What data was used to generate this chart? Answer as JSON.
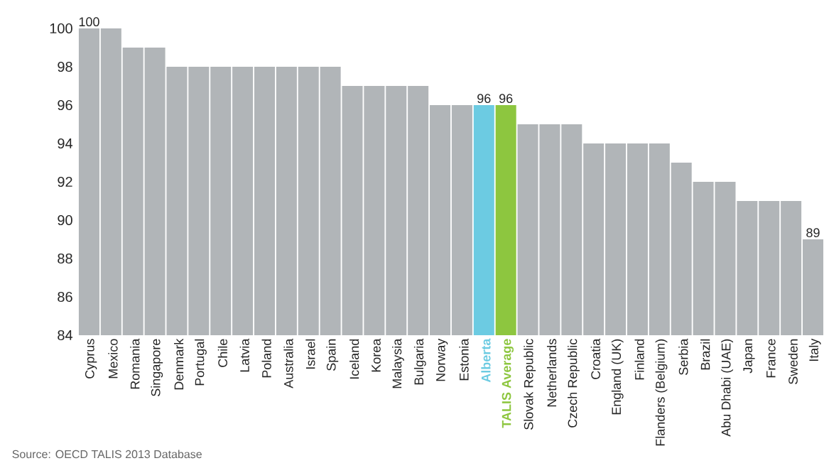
{
  "chart_data": {
    "type": "bar",
    "categories": [
      "Cyprus",
      "Mexico",
      "Romania",
      "Singapore",
      "Denmark",
      "Portugal",
      "Chile",
      "Latvia",
      "Poland",
      "Australia",
      "Israel",
      "Spain",
      "Iceland",
      "Korea",
      "Malaysia",
      "Bulgaria",
      "Norway",
      "Estonia",
      "Alberta",
      "TALIS Average",
      "Slovak Republic",
      "Netherlands",
      "Czech Republic",
      "Croatia",
      "England (UK)",
      "Finland",
      "Flanders (Belgium)",
      "Serbia",
      "Brazil",
      "Abu Dhabi (UAE)",
      "Japan",
      "France",
      "Sweden",
      "Italy"
    ],
    "values": [
      100,
      100,
      99,
      99,
      98,
      98,
      98,
      98,
      98,
      98,
      98,
      98,
      97,
      97,
      97,
      97,
      96,
      96,
      96,
      96,
      95,
      95,
      95,
      94,
      94,
      94,
      94,
      93,
      92,
      92,
      91,
      91,
      91,
      89
    ],
    "value_labels": [
      "100",
      null,
      null,
      null,
      null,
      null,
      null,
      null,
      null,
      null,
      null,
      null,
      null,
      null,
      null,
      null,
      null,
      null,
      "96",
      "96",
      null,
      null,
      null,
      null,
      null,
      null,
      null,
      null,
      null,
      null,
      null,
      null,
      null,
      "89"
    ],
    "colors": [
      "#b1b5b8",
      "#b1b5b8",
      "#b1b5b8",
      "#b1b5b8",
      "#b1b5b8",
      "#b1b5b8",
      "#b1b5b8",
      "#b1b5b8",
      "#b1b5b8",
      "#b1b5b8",
      "#b1b5b8",
      "#b1b5b8",
      "#b1b5b8",
      "#b1b5b8",
      "#b1b5b8",
      "#b1b5b8",
      "#b1b5b8",
      "#b1b5b8",
      "#6ccbe2",
      "#8dc63f",
      "#b1b5b8",
      "#b1b5b8",
      "#b1b5b8",
      "#b1b5b8",
      "#b1b5b8",
      "#b1b5b8",
      "#b1b5b8",
      "#b1b5b8",
      "#b1b5b8",
      "#b1b5b8",
      "#b1b5b8",
      "#b1b5b8",
      "#b1b5b8",
      "#b1b5b8"
    ],
    "ylim": [
      84,
      100
    ],
    "yticks": [
      84,
      86,
      88,
      90,
      92,
      94,
      96,
      98,
      100
    ],
    "grid": false,
    "annotations": [
      "Source:    OECD TALIS 2013 Database"
    ]
  }
}
